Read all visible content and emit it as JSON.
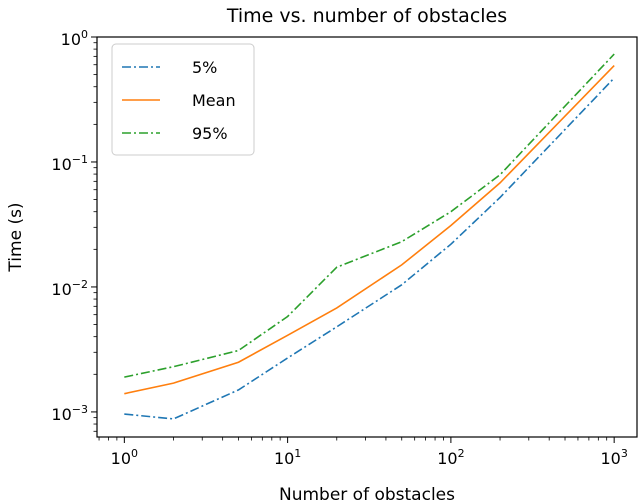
{
  "chart_data": {
    "type": "line",
    "title": "Time vs. number of obstacles",
    "xlabel": "Number of obstacles",
    "ylabel": "Time (s)",
    "xscale": "log",
    "yscale": "log",
    "xlim": [
      0.68,
      1380
    ],
    "ylim": [
      0.00063,
      1
    ],
    "x_ticks": [
      {
        "v": 1,
        "b": "10",
        "e": "0"
      },
      {
        "v": 10,
        "b": "10",
        "e": "1"
      },
      {
        "v": 100,
        "b": "10",
        "e": "2"
      },
      {
        "v": 1000,
        "b": "10",
        "e": "3"
      }
    ],
    "y_ticks": [
      {
        "v": 0.001,
        "b": "10",
        "e": "−3"
      },
      {
        "v": 0.01,
        "b": "10",
        "e": "−2"
      },
      {
        "v": 0.1,
        "b": "10",
        "e": "−1"
      },
      {
        "v": 1,
        "b": "10",
        "e": "0"
      }
    ],
    "grid": false,
    "legend": "top-left",
    "x": [
      1,
      2,
      5,
      10,
      20,
      50,
      100,
      200,
      1000
    ],
    "series": [
      {
        "name": "5%",
        "color": "#1f77b4",
        "dash": "dashdot",
        "values": [
          0.00096,
          0.00088,
          0.0015,
          0.0027,
          0.0048,
          0.0104,
          0.022,
          0.052,
          0.47
        ]
      },
      {
        "name": "Mean",
        "color": "#ff7f0e",
        "dash": "solid",
        "values": [
          0.0014,
          0.0017,
          0.0025,
          0.0041,
          0.0068,
          0.015,
          0.031,
          0.068,
          0.59
        ]
      },
      {
        "name": "95%",
        "color": "#2ca02c",
        "dash": "dashdot",
        "values": [
          0.0019,
          0.0023,
          0.0031,
          0.0058,
          0.0144,
          0.023,
          0.04,
          0.079,
          0.73
        ]
      }
    ]
  }
}
